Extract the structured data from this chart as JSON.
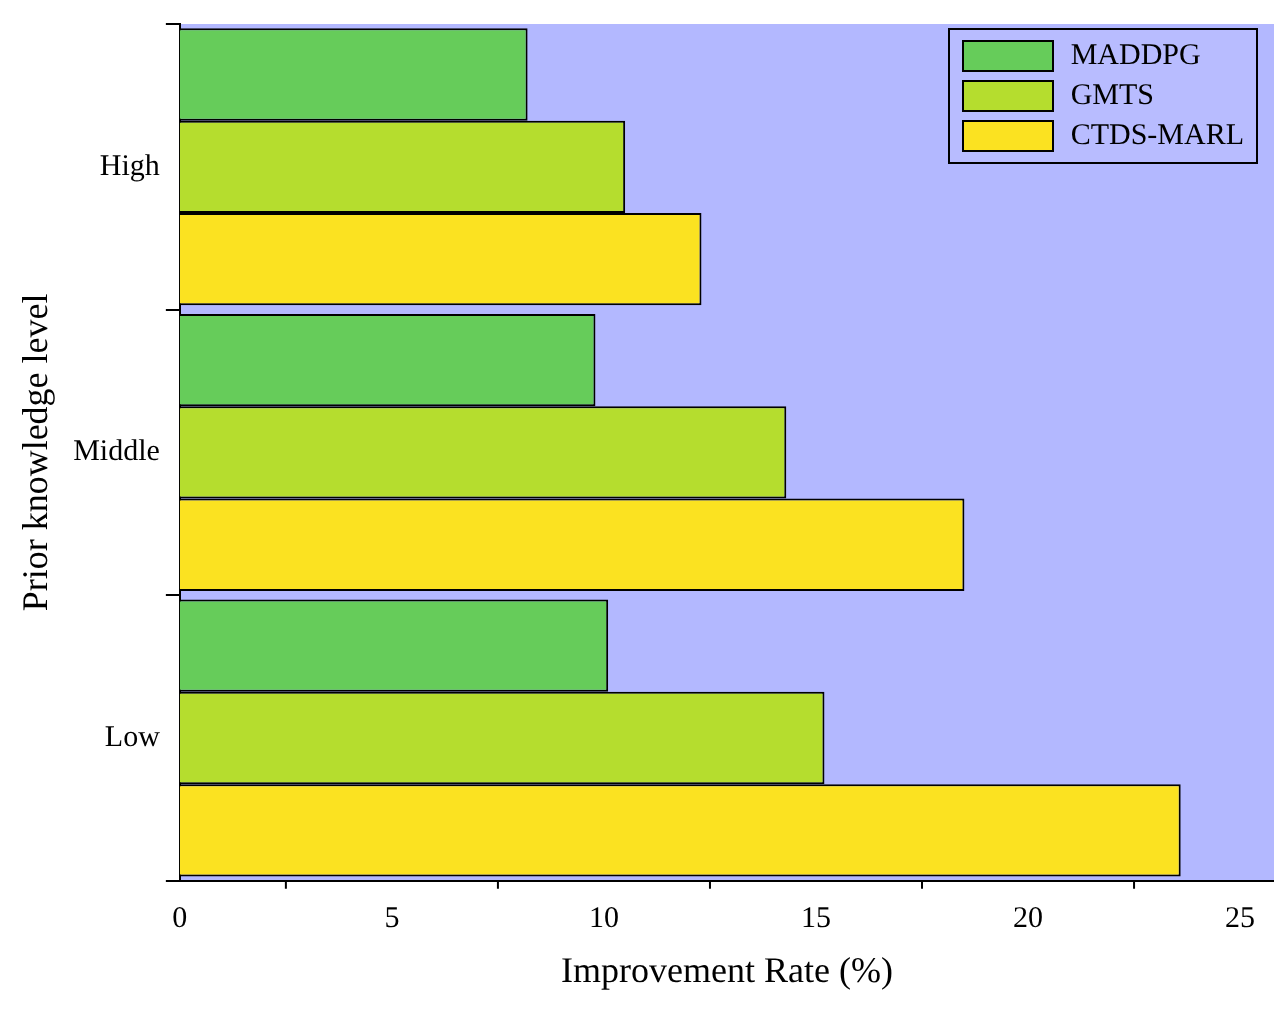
{
  "chart_data": {
    "type": "bar",
    "orientation": "horizontal",
    "xlabel": "Improvement Rate (%)",
    "ylabel": "Prior knowledge level",
    "categories": [
      "High",
      "Middle",
      "Low"
    ],
    "series": [
      {
        "name": "MADDPG",
        "color": "#66cc5a",
        "values": [
          8.2,
          9.8,
          10.1
        ]
      },
      {
        "name": "GMTS",
        "color": "#b5dd2e",
        "values": [
          10.5,
          14.3,
          15.2
        ]
      },
      {
        "name": "CTDS-MARL",
        "color": "#fbe221",
        "values": [
          12.3,
          18.5,
          23.6
        ]
      }
    ],
    "xlim": [
      0,
      25.8
    ],
    "xticks": [
      0,
      5,
      10,
      15,
      20,
      25
    ],
    "grid": false,
    "legend": "top right"
  }
}
